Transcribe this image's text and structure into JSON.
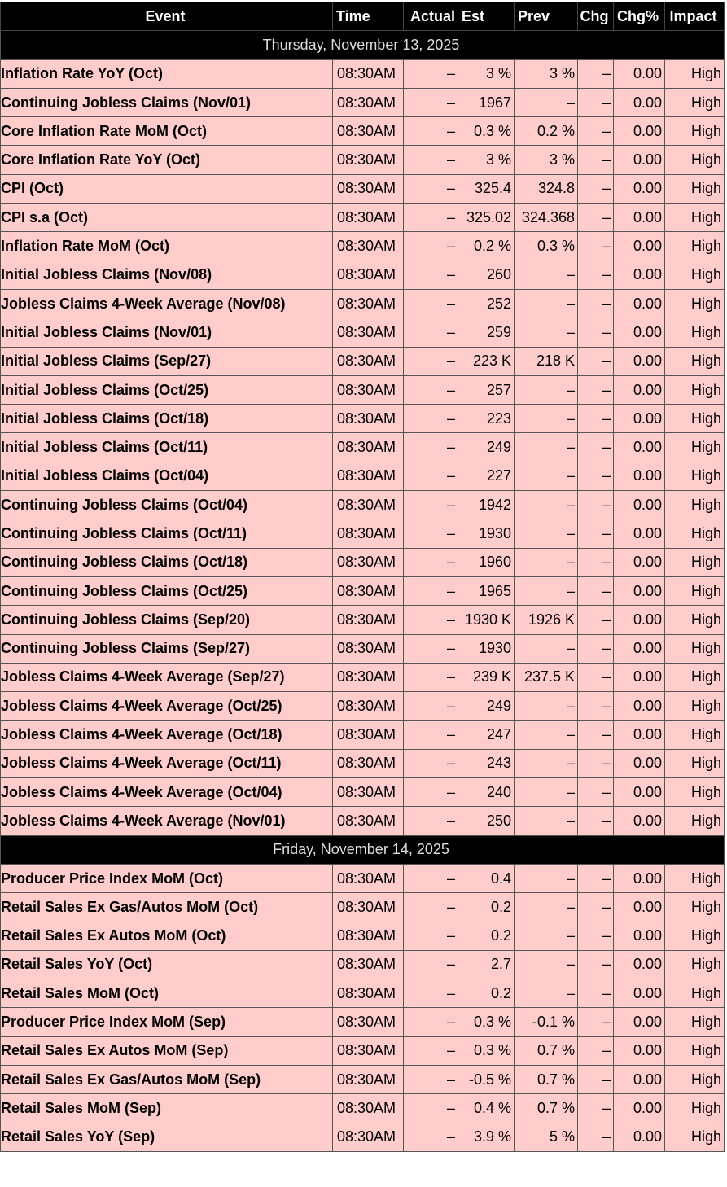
{
  "header": {
    "columns": [
      "Event",
      "Time",
      "Actual",
      "Est",
      "Prev",
      "Chg",
      "Chg%",
      "Impact"
    ]
  },
  "sections": [
    {
      "date": "Thursday, November 13, 2025",
      "rows": [
        [
          "Inflation Rate YoY (Oct)",
          "08:30AM",
          "–",
          "3 %",
          "3 %",
          "–",
          "0.00",
          "High"
        ],
        [
          "Continuing Jobless Claims (Nov/01)",
          "08:30AM",
          "–",
          "1967",
          "–",
          "–",
          "0.00",
          "High"
        ],
        [
          "Core Inflation Rate MoM (Oct)",
          "08:30AM",
          "–",
          "0.3 %",
          "0.2 %",
          "–",
          "0.00",
          "High"
        ],
        [
          "Core Inflation Rate YoY (Oct)",
          "08:30AM",
          "–",
          "3 %",
          "3 %",
          "–",
          "0.00",
          "High"
        ],
        [
          "CPI (Oct)",
          "08:30AM",
          "–",
          "325.4",
          "324.8",
          "–",
          "0.00",
          "High"
        ],
        [
          "CPI s.a (Oct)",
          "08:30AM",
          "–",
          "325.02",
          "324.368",
          "–",
          "0.00",
          "High"
        ],
        [
          "Inflation Rate MoM (Oct)",
          "08:30AM",
          "–",
          "0.2 %",
          "0.3 %",
          "–",
          "0.00",
          "High"
        ],
        [
          "Initial Jobless Claims (Nov/08)",
          "08:30AM",
          "–",
          "260",
          "–",
          "–",
          "0.00",
          "High"
        ],
        [
          "Jobless Claims 4-Week Average (Nov/08)",
          "08:30AM",
          "–",
          "252",
          "–",
          "–",
          "0.00",
          "High"
        ],
        [
          "Initial Jobless Claims (Nov/01)",
          "08:30AM",
          "–",
          "259",
          "–",
          "–",
          "0.00",
          "High"
        ],
        [
          "Initial Jobless Claims (Sep/27)",
          "08:30AM",
          "–",
          "223 K",
          "218 K",
          "–",
          "0.00",
          "High"
        ],
        [
          "Initial Jobless Claims (Oct/25)",
          "08:30AM",
          "–",
          "257",
          "–",
          "–",
          "0.00",
          "High"
        ],
        [
          "Initial Jobless Claims (Oct/18)",
          "08:30AM",
          "–",
          "223",
          "–",
          "–",
          "0.00",
          "High"
        ],
        [
          "Initial Jobless Claims (Oct/11)",
          "08:30AM",
          "–",
          "249",
          "–",
          "–",
          "0.00",
          "High"
        ],
        [
          "Initial Jobless Claims (Oct/04)",
          "08:30AM",
          "–",
          "227",
          "–",
          "–",
          "0.00",
          "High"
        ],
        [
          "Continuing Jobless Claims (Oct/04)",
          "08:30AM",
          "–",
          "1942",
          "–",
          "–",
          "0.00",
          "High"
        ],
        [
          "Continuing Jobless Claims (Oct/11)",
          "08:30AM",
          "–",
          "1930",
          "–",
          "–",
          "0.00",
          "High"
        ],
        [
          "Continuing Jobless Claims (Oct/18)",
          "08:30AM",
          "–",
          "1960",
          "–",
          "–",
          "0.00",
          "High"
        ],
        [
          "Continuing Jobless Claims (Oct/25)",
          "08:30AM",
          "–",
          "1965",
          "–",
          "–",
          "0.00",
          "High"
        ],
        [
          "Continuing Jobless Claims (Sep/20)",
          "08:30AM",
          "–",
          "1930 K",
          "1926 K",
          "–",
          "0.00",
          "High"
        ],
        [
          "Continuing Jobless Claims (Sep/27)",
          "08:30AM",
          "–",
          "1930",
          "–",
          "–",
          "0.00",
          "High"
        ],
        [
          "Jobless Claims 4-Week Average (Sep/27)",
          "08:30AM",
          "–",
          "239 K",
          "237.5 K",
          "–",
          "0.00",
          "High"
        ],
        [
          "Jobless Claims 4-Week Average (Oct/25)",
          "08:30AM",
          "–",
          "249",
          "–",
          "–",
          "0.00",
          "High"
        ],
        [
          "Jobless Claims 4-Week Average (Oct/18)",
          "08:30AM",
          "–",
          "247",
          "–",
          "–",
          "0.00",
          "High"
        ],
        [
          "Jobless Claims 4-Week Average (Oct/11)",
          "08:30AM",
          "–",
          "243",
          "–",
          "–",
          "0.00",
          "High"
        ],
        [
          "Jobless Claims 4-Week Average (Oct/04)",
          "08:30AM",
          "–",
          "240",
          "–",
          "–",
          "0.00",
          "High"
        ],
        [
          "Jobless Claims 4-Week Average (Nov/01)",
          "08:30AM",
          "–",
          "250",
          "–",
          "–",
          "0.00",
          "High"
        ]
      ]
    },
    {
      "date": "Friday, November 14, 2025",
      "rows": [
        [
          "Producer Price Index MoM (Oct)",
          "08:30AM",
          "–",
          "0.4",
          "–",
          "–",
          "0.00",
          "High"
        ],
        [
          "Retail Sales Ex Gas/Autos MoM (Oct)",
          "08:30AM",
          "–",
          "0.2",
          "–",
          "–",
          "0.00",
          "High"
        ],
        [
          "Retail Sales Ex Autos MoM (Oct)",
          "08:30AM",
          "–",
          "0.2",
          "–",
          "–",
          "0.00",
          "High"
        ],
        [
          "Retail Sales YoY (Oct)",
          "08:30AM",
          "–",
          "2.7",
          "–",
          "–",
          "0.00",
          "High"
        ],
        [
          "Retail Sales MoM (Oct)",
          "08:30AM",
          "–",
          "0.2",
          "–",
          "–",
          "0.00",
          "High"
        ],
        [
          "Producer Price Index MoM (Sep)",
          "08:30AM",
          "–",
          "0.3 %",
          "-0.1 %",
          "–",
          "0.00",
          "High"
        ],
        [
          "Retail Sales Ex Autos MoM (Sep)",
          "08:30AM",
          "–",
          "0.3 %",
          "0.7 %",
          "–",
          "0.00",
          "High"
        ],
        [
          "Retail Sales Ex Gas/Autos MoM (Sep)",
          "08:30AM",
          "–",
          "-0.5 %",
          "0.7 %",
          "–",
          "0.00",
          "High"
        ],
        [
          "Retail Sales MoM (Sep)",
          "08:30AM",
          "–",
          "0.4 %",
          "0.7 %",
          "–",
          "0.00",
          "High"
        ],
        [
          "Retail Sales YoY (Sep)",
          "08:30AM",
          "–",
          "3.9 %",
          "5 %",
          "–",
          "0.00",
          "High"
        ]
      ]
    }
  ]
}
